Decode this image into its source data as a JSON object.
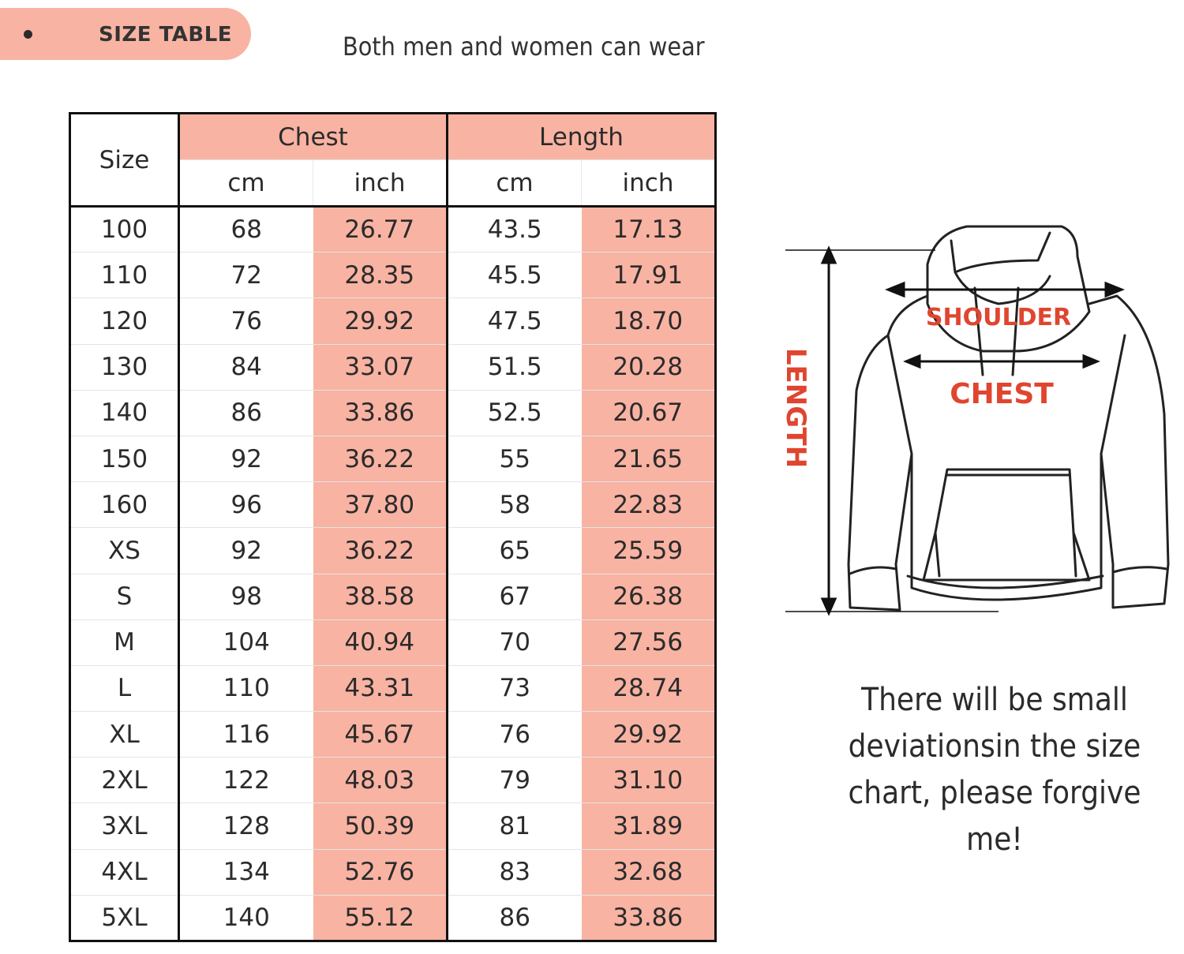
{
  "header": {
    "badge_label": "SIZE TABLE",
    "subtitle": "Both men and women can wear"
  },
  "colors": {
    "accent": "#f9b3a3",
    "label_red": "#e0452f"
  },
  "table": {
    "size_header": "Size",
    "groups": [
      "Chest",
      "Length"
    ],
    "units": [
      "cm",
      "inch",
      "cm",
      "inch"
    ],
    "rows": [
      [
        "100",
        "68",
        "26.77",
        "43.5",
        "17.13"
      ],
      [
        "110",
        "72",
        "28.35",
        "45.5",
        "17.91"
      ],
      [
        "120",
        "76",
        "29.92",
        "47.5",
        "18.70"
      ],
      [
        "130",
        "84",
        "33.07",
        "51.5",
        "20.28"
      ],
      [
        "140",
        "86",
        "33.86",
        "52.5",
        "20.67"
      ],
      [
        "150",
        "92",
        "36.22",
        "55",
        "21.65"
      ],
      [
        "160",
        "96",
        "37.80",
        "58",
        "22.83"
      ],
      [
        "XS",
        "92",
        "36.22",
        "65",
        "25.59"
      ],
      [
        "S",
        "98",
        "38.58",
        "67",
        "26.38"
      ],
      [
        "M",
        "104",
        "40.94",
        "70",
        "27.56"
      ],
      [
        "L",
        "110",
        "43.31",
        "73",
        "28.74"
      ],
      [
        "XL",
        "116",
        "45.67",
        "76",
        "29.92"
      ],
      [
        "2XL",
        "122",
        "48.03",
        "79",
        "31.10"
      ],
      [
        "3XL",
        "128",
        "50.39",
        "81",
        "31.89"
      ],
      [
        "4XL",
        "134",
        "52.76",
        "83",
        "32.68"
      ],
      [
        "5XL",
        "140",
        "55.12",
        "86",
        "33.86"
      ]
    ]
  },
  "diagram": {
    "length_label": "LENGTH",
    "shoulder_label": "SHOULDER",
    "chest_label": "CHEST"
  },
  "note": {
    "lines": [
      "There will be small",
      "deviationsin the size",
      "chart, please forgive me!"
    ]
  }
}
